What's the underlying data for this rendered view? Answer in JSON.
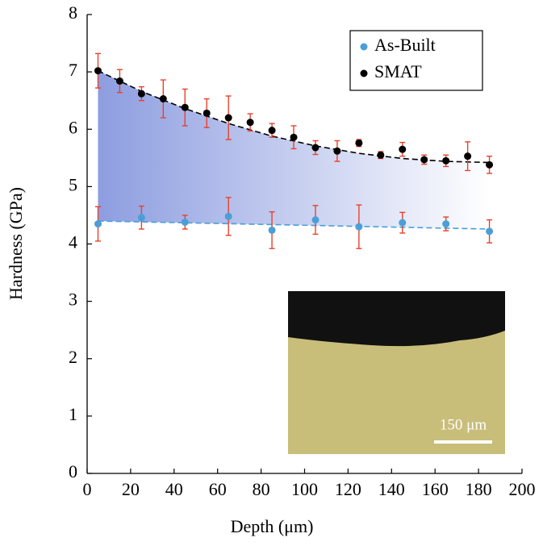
{
  "chart_data": {
    "type": "scatter",
    "x_label": "Depth (μm)",
    "y_label": "Hardness (GPa)",
    "xlim": [
      0,
      200
    ],
    "xticks": [
      0,
      20,
      40,
      60,
      80,
      100,
      120,
      140,
      160,
      180,
      200
    ],
    "ylim": [
      0,
      8
    ],
    "yticks": [
      0,
      1,
      2,
      3,
      4,
      5,
      6,
      7,
      8
    ],
    "grid": false,
    "legend": "upper right",
    "error_color": "#e8412c",
    "series": [
      {
        "name": "As-Built",
        "color": "#4a9fd8",
        "x": [
          5,
          25,
          45,
          65,
          85,
          105,
          125,
          145,
          165,
          185
        ],
        "values": [
          4.35,
          4.46,
          4.38,
          4.48,
          4.24,
          4.42,
          4.3,
          4.37,
          4.35,
          4.22
        ],
        "errors": [
          0.3,
          0.2,
          0.12,
          0.33,
          0.32,
          0.25,
          0.38,
          0.18,
          0.12,
          0.2
        ]
      },
      {
        "name": "SMAT",
        "color": "#000000",
        "x": [
          5,
          15,
          25,
          35,
          45,
          55,
          65,
          75,
          85,
          95,
          105,
          115,
          125,
          135,
          145,
          155,
          165,
          175,
          185
        ],
        "values": [
          7.02,
          6.84,
          6.62,
          6.53,
          6.38,
          6.28,
          6.2,
          6.12,
          5.98,
          5.86,
          5.68,
          5.62,
          5.76,
          5.55,
          5.65,
          5.47,
          5.45,
          5.53,
          5.38
        ],
        "errors": [
          0.3,
          0.2,
          0.12,
          0.33,
          0.32,
          0.25,
          0.38,
          0.15,
          0.12,
          0.2,
          0.12,
          0.18,
          0.06,
          0.06,
          0.12,
          0.08,
          0.1,
          0.25,
          0.15
        ]
      }
    ],
    "fits": [
      {
        "color": "#4a9fd8",
        "x": [
          5,
          185
        ],
        "values": [
          4.4,
          4.26
        ]
      },
      {
        "color": "#000000",
        "x": [
          5,
          25,
          45,
          65,
          85,
          105,
          125,
          145,
          165,
          185
        ],
        "values": [
          7.02,
          6.66,
          6.36,
          6.1,
          5.88,
          5.71,
          5.58,
          5.49,
          5.44,
          5.42
        ]
      }
    ],
    "inset_scale_label": "150 μm"
  }
}
